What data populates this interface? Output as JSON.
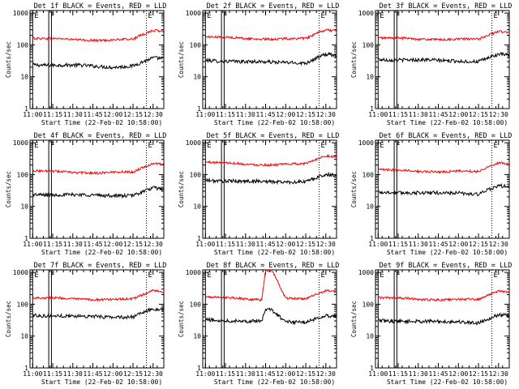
{
  "chart_data": {
    "type": "line",
    "shared": {
      "ylabel": "Counts/sec",
      "xlabel": "Start Time (22-Feb-02 10:58:00)",
      "x_ticks": [
        "11:00",
        "11:15",
        "11:30",
        "11:45",
        "12:00",
        "12:15",
        "12:30"
      ],
      "y_ticks": [
        "1",
        "10",
        "100",
        "1000"
      ],
      "y_scale": "log",
      "ylim": [
        1,
        1200
      ],
      "xlim": [
        "10:58",
        "12:38"
      ],
      "markers": [
        {
          "label": "E",
          "time": "11:00",
          "style": "solid"
        },
        {
          "label": "F",
          "time": "11:12",
          "style": "solid"
        },
        {
          "label": "",
          "time": "11:14",
          "style": "solid"
        },
        {
          "label": "E",
          "time": "12:25",
          "style": "dotted"
        }
      ],
      "series_colors": {
        "events": "#000000",
        "lld": "#ff0000"
      }
    },
    "panels": [
      {
        "title": "Det 1f BLACK = Events, RED = LLD",
        "series": [
          {
            "name": "Events",
            "color": "#000000",
            "x": [
              "11:00",
              "11:30",
              "12:00",
              "12:15",
              "12:30",
              "12:38"
            ],
            "y": [
              25,
              22,
              21,
              22,
              37,
              36
            ]
          },
          {
            "name": "LLD",
            "color": "#ff0000",
            "x": [
              "11:00",
              "11:30",
              "12:00",
              "12:15",
              "12:30",
              "12:38"
            ],
            "y": [
              170,
              140,
              150,
              145,
              280,
              270
            ]
          }
        ]
      },
      {
        "title": "Det 2f BLACK = Events, RED = LLD",
        "series": [
          {
            "name": "Events",
            "color": "#000000",
            "x": [
              "11:00",
              "11:30",
              "12:00",
              "12:15",
              "12:30",
              "12:38"
            ],
            "y": [
              35,
              28,
              30,
              27,
              48,
              45
            ]
          },
          {
            "name": "LLD",
            "color": "#ff0000",
            "x": [
              "11:00",
              "11:30",
              "12:00",
              "12:15",
              "12:30",
              "12:38"
            ],
            "y": [
              190,
              150,
              165,
              150,
              290,
              280
            ]
          }
        ]
      },
      {
        "title": "Det 3f BLACK = Events, RED = LLD",
        "series": [
          {
            "name": "Events",
            "color": "#000000",
            "x": [
              "11:00",
              "11:30",
              "12:00",
              "12:15",
              "12:30",
              "12:38"
            ],
            "y": [
              37,
              32,
              33,
              30,
              48,
              46
            ]
          },
          {
            "name": "LLD",
            "color": "#ff0000",
            "x": [
              "11:00",
              "11:30",
              "12:00",
              "12:15",
              "12:30",
              "12:38"
            ],
            "y": [
              175,
              145,
              160,
              145,
              260,
              250
            ]
          }
        ]
      },
      {
        "title": "Det 4f BLACK = Events, RED = LLD",
        "series": [
          {
            "name": "Events",
            "color": "#000000",
            "x": [
              "11:00",
              "11:30",
              "12:00",
              "12:15",
              "12:30",
              "12:38"
            ],
            "y": [
              25,
              22,
              23,
              22,
              36,
              34
            ]
          },
          {
            "name": "LLD",
            "color": "#ff0000",
            "x": [
              "11:00",
              "11:30",
              "12:00",
              "12:15",
              "12:30",
              "12:38"
            ],
            "y": [
              140,
              110,
              125,
              115,
              220,
              210
            ]
          }
        ]
      },
      {
        "title": "Det 5f BLACK = Events, RED = LLD",
        "series": [
          {
            "name": "Events",
            "color": "#000000",
            "x": [
              "11:00",
              "11:30",
              "12:00",
              "12:15",
              "12:30",
              "12:38"
            ],
            "y": [
              70,
              58,
              62,
              60,
              95,
              90
            ]
          },
          {
            "name": "LLD",
            "color": "#ff0000",
            "x": [
              "11:00",
              "11:30",
              "12:00",
              "12:15",
              "12:30",
              "12:38"
            ],
            "y": [
              260,
              200,
              220,
              210,
              380,
              360
            ]
          }
        ]
      },
      {
        "title": "Det 6f BLACK = Events, RED = LLD",
        "series": [
          {
            "name": "Events",
            "color": "#000000",
            "x": [
              "11:00",
              "11:30",
              "12:00",
              "12:15",
              "12:30",
              "12:38"
            ],
            "y": [
              30,
              25,
              28,
              24,
              42,
              40
            ]
          },
          {
            "name": "LLD",
            "color": "#ff0000",
            "x": [
              "11:00",
              "11:30",
              "12:00",
              "12:15",
              "12:30",
              "12:38"
            ],
            "y": [
              150,
              120,
              135,
              120,
              230,
              220
            ]
          }
        ]
      },
      {
        "title": "Det 7f BLACK = Events, RED = LLD",
        "series": [
          {
            "name": "Events",
            "color": "#000000",
            "x": [
              "11:00",
              "11:30",
              "12:00",
              "12:15",
              "12:30",
              "12:38"
            ],
            "y": [
              48,
              40,
              42,
              40,
              68,
              65
            ]
          },
          {
            "name": "LLD",
            "color": "#ff0000",
            "x": [
              "11:00",
              "11:30",
              "12:00",
              "12:15",
              "12:30",
              "12:38"
            ],
            "y": [
              170,
              140,
              150,
              140,
              260,
              250
            ]
          }
        ]
      },
      {
        "title": "Det 8f BLACK = Events, RED = LLD",
        "series": [
          {
            "name": "Events",
            "color": "#000000",
            "x": [
              "11:00",
              "11:30",
              "11:42",
              "11:45",
              "11:50",
              "12:00",
              "12:15",
              "12:30",
              "12:38"
            ],
            "y": [
              35,
              28,
              28,
              70,
              65,
              30,
              27,
              42,
              40
            ]
          },
          {
            "name": "LLD",
            "color": "#ff0000",
            "x": [
              "11:00",
              "11:30",
              "11:42",
              "11:45",
              "11:50",
              "12:00",
              "12:15",
              "12:30",
              "12:38"
            ],
            "y": [
              180,
              140,
              140,
              1200,
              1200,
              160,
              140,
              260,
              250
            ]
          }
        ]
      },
      {
        "title": "Det 9f BLACK = Events, RED = LLD",
        "series": [
          {
            "name": "Events",
            "color": "#000000",
            "x": [
              "11:00",
              "11:30",
              "12:00",
              "12:15",
              "12:30",
              "12:38"
            ],
            "y": [
              33,
              27,
              30,
              26,
              44,
              42
            ]
          },
          {
            "name": "LLD",
            "color": "#ff0000",
            "x": [
              "11:00",
              "11:30",
              "12:00",
              "12:15",
              "12:30",
              "12:38"
            ],
            "y": [
              170,
              135,
              150,
              135,
              250,
              240
            ]
          }
        ]
      }
    ]
  }
}
